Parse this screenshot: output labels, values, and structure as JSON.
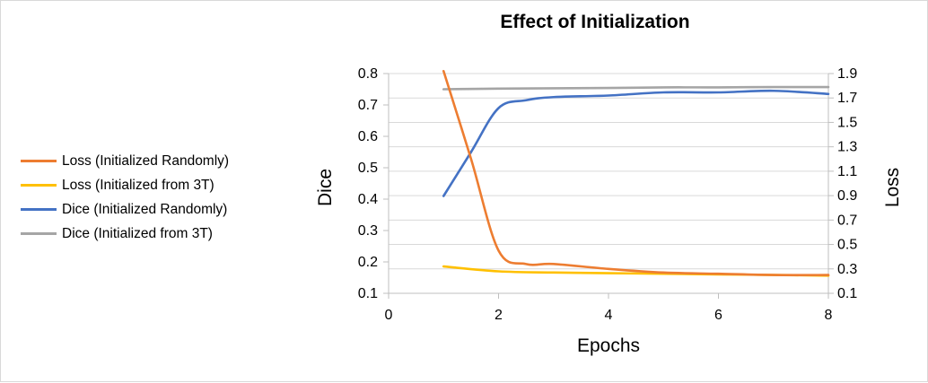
{
  "chart_data": {
    "type": "line",
    "title": "Effect of Initialization",
    "xlabel": "Epochs",
    "ylabel": "Dice",
    "y2label": "Loss",
    "xlim": [
      0,
      8
    ],
    "ylim": [
      0.1,
      0.8
    ],
    "y2lim": [
      0.1,
      1.9
    ],
    "x_ticks": [
      "0",
      "2",
      "4",
      "6",
      "8"
    ],
    "y_ticks": [
      "0.1",
      "0.2",
      "0.3",
      "0.4",
      "0.5",
      "0.6",
      "0.7",
      "0.8"
    ],
    "y2_ticks": [
      "0.1",
      "0.3",
      "0.5",
      "0.7",
      "0.9",
      "1.1",
      "1.3",
      "1.5",
      "1.7",
      "1.9"
    ],
    "grid": true,
    "legend_position": "left",
    "series": [
      {
        "name": "Loss (Initialized Randomly)",
        "axis": "right",
        "color": "#ed7d31",
        "x": [
          1,
          1.5,
          2,
          2.5,
          3,
          4,
          5,
          6,
          7,
          8
        ],
        "y": [
          1.92,
          1.2,
          0.45,
          0.34,
          0.34,
          0.3,
          0.27,
          0.26,
          0.25,
          0.25
        ]
      },
      {
        "name": "Loss (Initialized from 3T)",
        "axis": "right",
        "color": "#ffc000",
        "x": [
          1,
          2,
          3,
          4,
          5,
          6,
          7,
          8
        ],
        "y": [
          0.32,
          0.28,
          0.27,
          0.265,
          0.26,
          0.255,
          0.25,
          0.245
        ]
      },
      {
        "name": "Dice (Initialized Randomly)",
        "axis": "left",
        "color": "#4472c4",
        "x": [
          1,
          1.5,
          2,
          2.5,
          3,
          4,
          5,
          6,
          7,
          8
        ],
        "y": [
          0.41,
          0.55,
          0.69,
          0.715,
          0.725,
          0.73,
          0.74,
          0.74,
          0.745,
          0.735
        ]
      },
      {
        "name": "Dice (Initialized from 3T)",
        "axis": "left",
        "color": "#a5a5a5",
        "x": [
          1,
          2,
          3,
          4,
          5,
          6,
          7,
          8
        ],
        "y": [
          0.75,
          0.752,
          0.753,
          0.754,
          0.756,
          0.756,
          0.757,
          0.757
        ]
      }
    ]
  }
}
